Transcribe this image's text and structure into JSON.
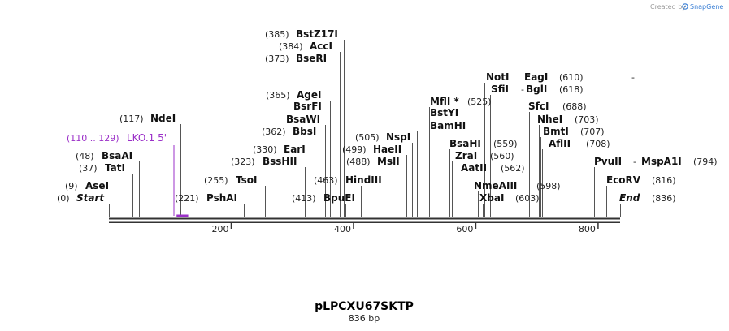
{
  "plasmid": {
    "name": "pLPCXU67SKTP",
    "size_label": "836 bp"
  },
  "credit": {
    "prefix": "Created by",
    "brand": "SnapGene"
  },
  "sequence": {
    "length": 836,
    "ticks": [
      200,
      400,
      600,
      800
    ]
  },
  "features": [
    {
      "range": "(110 .. 129)",
      "name": "LKO.1 5'",
      "start": 110,
      "end": 129
    }
  ],
  "sites": [
    {
      "name": "Start",
      "pos": "(0)",
      "bp": 0,
      "italic": true
    },
    {
      "name": "AseI",
      "pos": "(9)",
      "bp": 9
    },
    {
      "name": "TatI",
      "pos": "(37)",
      "bp": 37
    },
    {
      "name": "BsaAI",
      "pos": "(48)",
      "bp": 48
    },
    {
      "name": "NdeI",
      "pos": "(117)",
      "bp": 117
    },
    {
      "name": "PshAI",
      "pos": "(221)",
      "bp": 221
    },
    {
      "name": "TsoI",
      "pos": "(255)",
      "bp": 255
    },
    {
      "name": "BssHII",
      "pos": "(323)",
      "bp": 323
    },
    {
      "name": "EarI",
      "pos": "(330)",
      "bp": 330
    },
    {
      "name": "BbsI",
      "pos": "(362)",
      "bp": 362
    },
    {
      "name": "BsaWI",
      "pos": "",
      "bp": 366
    },
    {
      "name": "BsrFI",
      "pos": "",
      "bp": 366
    },
    {
      "name": "AgeI",
      "pos": "(365)",
      "bp": 365
    },
    {
      "name": "BseRI",
      "pos": "(373)",
      "bp": 373
    },
    {
      "name": "AccI",
      "pos": "(384)",
      "bp": 384
    },
    {
      "name": "BstZ17I",
      "pos": "(385)",
      "bp": 385
    },
    {
      "name": "BpuEI",
      "pos": "(413)",
      "bp": 413
    },
    {
      "name": "HindIII",
      "pos": "(463)",
      "bp": 463
    },
    {
      "name": "MslI",
      "pos": "(488)",
      "bp": 488
    },
    {
      "name": "HaeII",
      "pos": "(499)",
      "bp": 499
    },
    {
      "name": "NspI",
      "pos": "(505)",
      "bp": 505
    },
    {
      "name": "BamHI",
      "pos": "",
      "bp": 526
    },
    {
      "name": "BstYI",
      "pos": "",
      "bp": 526
    },
    {
      "name": "MflI",
      "pos": "(525)",
      "bp": 525,
      "star": "*"
    },
    {
      "name": "BsaHI",
      "pos": "(559)",
      "bp": 559
    },
    {
      "name": "ZraI",
      "pos": "(560)",
      "bp": 560
    },
    {
      "name": "AatII",
      "pos": "(562)",
      "bp": 562
    },
    {
      "name": "NmeAIII",
      "pos": "(598)",
      "bp": 598
    },
    {
      "name": "XbaI",
      "pos": "(603)",
      "bp": 603
    },
    {
      "name": "NotI",
      "pos": "",
      "bp": 610
    },
    {
      "name": "EagI",
      "pos": "(610)",
      "bp": 610
    },
    {
      "name": "SfiI",
      "pos": "",
      "bp": 618
    },
    {
      "name": "BglI",
      "pos": "(618)",
      "bp": 618
    },
    {
      "name": "SfcI",
      "pos": "(688)",
      "bp": 688
    },
    {
      "name": "NheI",
      "pos": "(703)",
      "bp": 703
    },
    {
      "name": "BmtI",
      "pos": "(707)",
      "bp": 707
    },
    {
      "name": "AflII",
      "pos": "(708)",
      "bp": 708
    },
    {
      "name": "PvuII",
      "pos": "",
      "bp": 794
    },
    {
      "name": "MspA1I",
      "pos": "(794)",
      "bp": 794
    },
    {
      "name": "EcoRV",
      "pos": "(816)",
      "bp": 816
    },
    {
      "name": "End",
      "pos": "(836)",
      "bp": 836,
      "italic": true
    }
  ],
  "pair_separator": "-",
  "colors": {
    "feature": "#9b30c8",
    "backbone": "#333333",
    "credit": "#9a9a9a",
    "brand": "#3a7fd5"
  }
}
